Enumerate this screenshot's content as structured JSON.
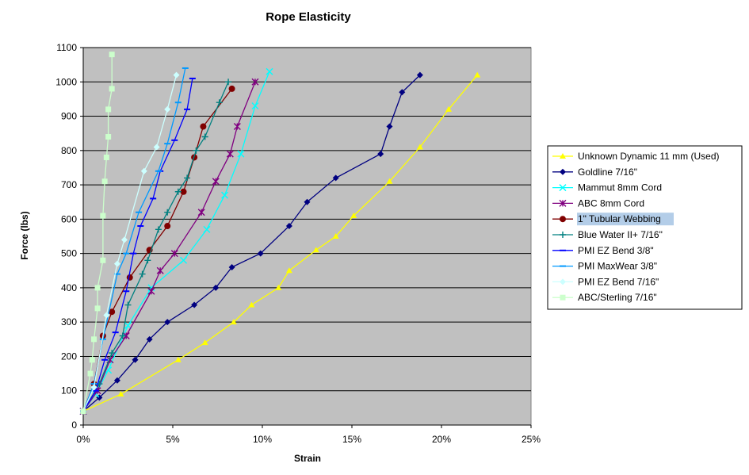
{
  "chart_data": {
    "type": "line",
    "title": "Rope Elasticity",
    "xlabel": "Strain",
    "ylabel": "Force (lbs)",
    "xlim": [
      0,
      25
    ],
    "ylim": [
      0,
      1100
    ],
    "x_ticks": [
      "0%",
      "5%",
      "10%",
      "15%",
      "20%",
      "25%"
    ],
    "y_ticks": [
      "0",
      "100",
      "200",
      "300",
      "400",
      "500",
      "600",
      "700",
      "800",
      "900",
      "1000",
      "1100"
    ],
    "grid": "horizontal",
    "plot_background": "#c0c0c0",
    "legend_position": "right",
    "series": [
      {
        "name": "Unknown Dynamic 11 mm (Used)",
        "color": "#ffff00",
        "marker": "triangle",
        "x": [
          0,
          2.1,
          5.3,
          6.8,
          8.4,
          9.4,
          10.9,
          11.5,
          13.0,
          14.1,
          15.1,
          17.1,
          18.8,
          20.4,
          22.0
        ],
        "y": [
          40,
          90,
          190,
          240,
          300,
          350,
          400,
          450,
          510,
          550,
          610,
          710,
          810,
          920,
          1020
        ]
      },
      {
        "name": "Goldline 7/16\"",
        "color": "#000080",
        "marker": "diamond",
        "x": [
          0,
          0.9,
          1.9,
          2.9,
          3.7,
          4.7,
          6.2,
          7.4,
          8.3,
          9.9,
          11.5,
          12.5,
          14.1,
          16.6,
          17.1,
          17.8,
          18.8
        ],
        "y": [
          40,
          80,
          130,
          190,
          250,
          300,
          350,
          400,
          460,
          500,
          580,
          650,
          720,
          790,
          870,
          970,
          1020
        ]
      },
      {
        "name": "Mammut 8mm Cord",
        "color": "#00ffff",
        "marker": "x",
        "x": [
          0,
          0.7,
          1.4,
          2.5,
          3.8,
          5.6,
          6.9,
          7.9,
          8.8,
          9.6,
          10.4
        ],
        "y": [
          40,
          90,
          160,
          290,
          400,
          480,
          570,
          670,
          790,
          930,
          1030
        ]
      },
      {
        "name": "ABC 8mm Cord",
        "color": "#800080",
        "marker": "star",
        "x": [
          0,
          0.8,
          1.5,
          2.4,
          3.8,
          4.3,
          5.1,
          6.6,
          7.4,
          8.2,
          8.6,
          9.6
        ],
        "y": [
          40,
          100,
          190,
          260,
          390,
          450,
          500,
          620,
          710,
          790,
          870,
          1000
        ]
      },
      {
        "name": "1\" Tubular Webbing",
        "color": "#800000",
        "marker": "circle",
        "x": [
          0,
          0.6,
          1.1,
          1.6,
          2.6,
          3.7,
          4.7,
          5.6,
          6.2,
          6.7,
          8.3
        ],
        "y": [
          40,
          120,
          260,
          330,
          430,
          510,
          580,
          680,
          780,
          870,
          980
        ]
      },
      {
        "name": "Blue Water II+ 7/16\"",
        "color": "#008080",
        "marker": "plus",
        "x": [
          0,
          0.9,
          1.6,
          2.2,
          2.5,
          3.3,
          3.6,
          4.2,
          4.7,
          5.3,
          5.8,
          6.3,
          6.8,
          7.6,
          8.1
        ],
        "y": [
          40,
          120,
          210,
          260,
          350,
          440,
          480,
          570,
          620,
          680,
          720,
          800,
          840,
          940,
          1000
        ]
      },
      {
        "name": "PMI EZ Bend 3/8\"",
        "color": "#0000ff",
        "marker": "dash",
        "x": [
          0,
          0.7,
          1.2,
          1.8,
          2.4,
          2.8,
          3.2,
          3.9,
          4.3,
          5.1,
          5.8,
          6.1
        ],
        "y": [
          40,
          100,
          190,
          270,
          390,
          500,
          580,
          660,
          740,
          830,
          920,
          1010
        ]
      },
      {
        "name": "PMI MaxWear 3/8\"",
        "color": "#0099ff",
        "marker": "dash",
        "x": [
          0,
          0.6,
          1.1,
          1.9,
          2.4,
          3.1,
          4.2,
          4.7,
          5.3,
          5.7
        ],
        "y": [
          40,
          120,
          250,
          440,
          500,
          620,
          740,
          820,
          940,
          1040
        ]
      },
      {
        "name": "PMI EZ Bend 7/16\"",
        "color": "#ccffff",
        "marker": "diamond",
        "x": [
          0,
          0.6,
          1.3,
          1.9,
          2.3,
          3.4,
          4.1,
          4.7,
          5.2
        ],
        "y": [
          40,
          110,
          320,
          470,
          540,
          740,
          810,
          920,
          1020
        ]
      },
      {
        "name": "ABC/Sterling 7/16\"",
        "color": "#ccffcc",
        "marker": "square",
        "x": [
          0,
          0.4,
          0.5,
          0.6,
          0.8,
          0.8,
          1.1,
          1.1,
          1.2,
          1.3,
          1.4,
          1.4,
          1.6,
          1.6
        ],
        "y": [
          40,
          150,
          190,
          250,
          340,
          400,
          480,
          610,
          710,
          780,
          840,
          920,
          980,
          1080
        ]
      }
    ]
  }
}
